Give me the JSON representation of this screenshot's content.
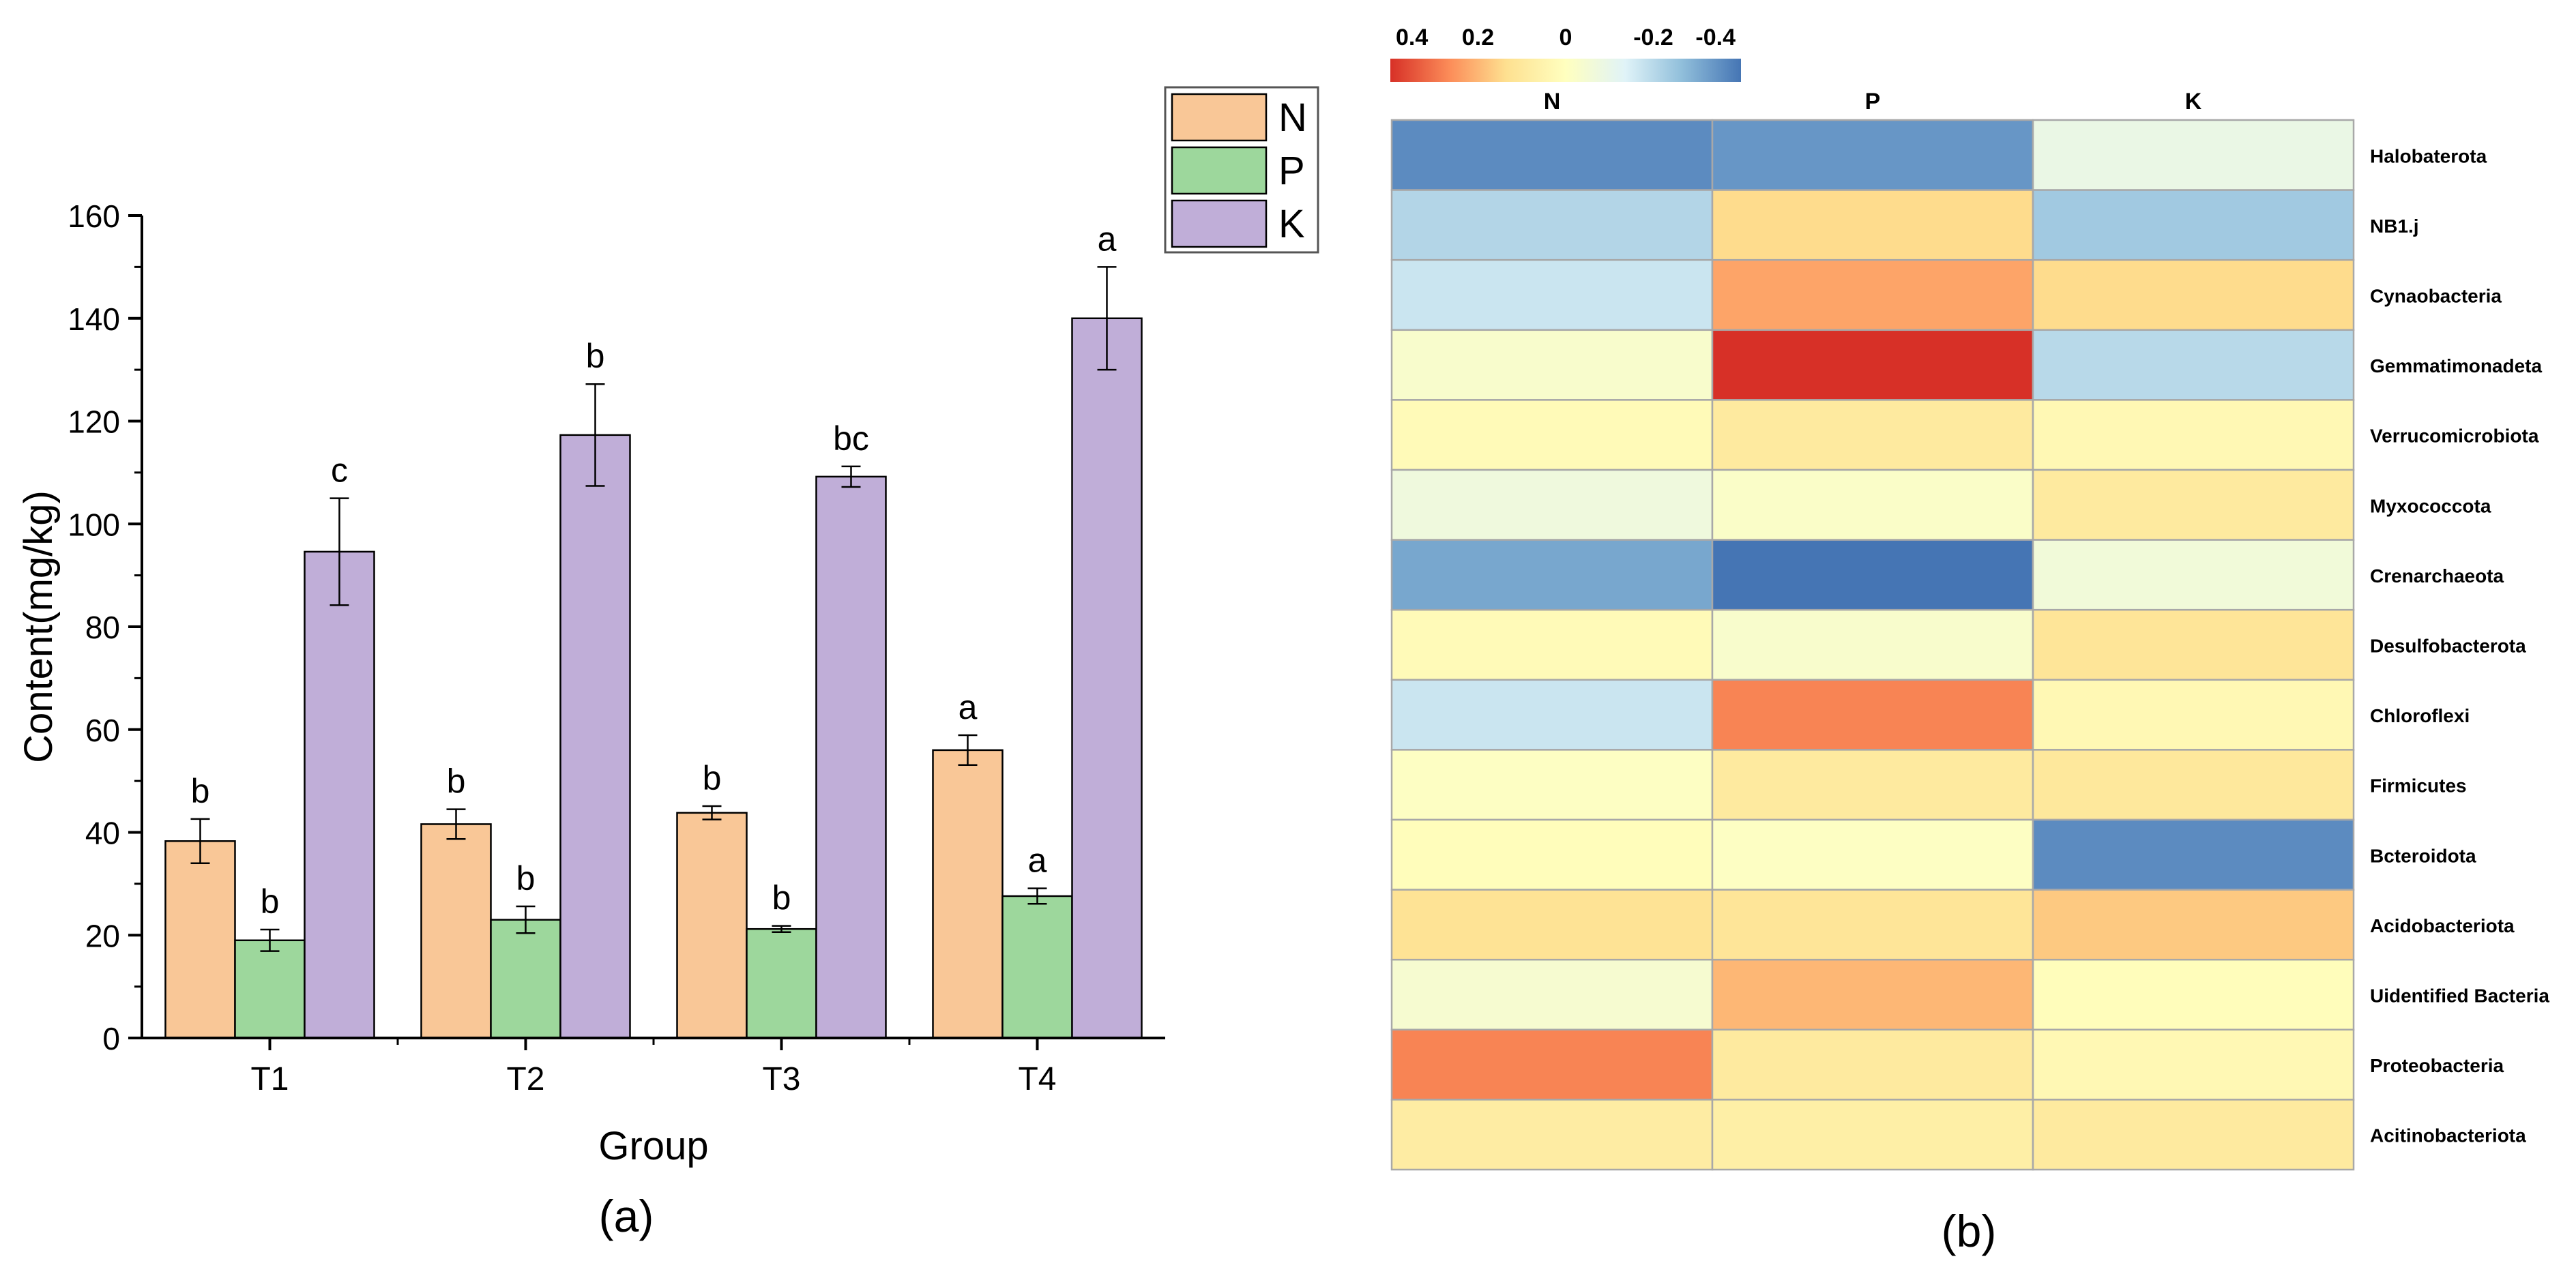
{
  "colors": {
    "N": "#f9c797",
    "P": "#9dd79c",
    "K": "#c0aed8",
    "axis": "#000000",
    "heat_border": "#a8a8a8",
    "scale": [
      "#d73027",
      "#fc8d59",
      "#fee090",
      "#ffffbf",
      "#e0f3f8",
      "#91bfdb",
      "#4575b4"
    ]
  },
  "chart_data": [
    {
      "type": "bar",
      "panel_label": "(a)",
      "xlabel": "Group",
      "ylabel": "Content(mg/kg)",
      "ylim": [
        0,
        160
      ],
      "yticks": [
        0,
        20,
        40,
        60,
        80,
        100,
        120,
        140,
        160
      ],
      "ytick_labels": [
        "0",
        "20",
        "40",
        "60",
        "80",
        "100",
        "120",
        "140",
        "160"
      ],
      "categories": [
        "T1",
        "T2",
        "T3",
        "T4"
      ],
      "legend_position": "top-right",
      "series": [
        {
          "name": "N",
          "values": [
            38.3,
            41.6,
            43.8,
            56.0
          ],
          "errors": [
            4.3,
            2.9,
            1.3,
            2.9
          ],
          "letters": [
            "b",
            "b",
            "b",
            "a"
          ]
        },
        {
          "name": "P",
          "values": [
            19.0,
            23.0,
            21.2,
            27.6
          ],
          "errors": [
            2.1,
            2.6,
            0.6,
            1.5
          ],
          "letters": [
            "b",
            "b",
            "b",
            "a"
          ]
        },
        {
          "name": "K",
          "values": [
            94.6,
            117.3,
            109.2,
            140.0
          ],
          "errors": [
            10.4,
            9.9,
            2.0,
            10.0
          ],
          "letters": [
            "c",
            "b",
            "bc",
            "a"
          ]
        }
      ]
    },
    {
      "type": "heatmap",
      "panel_label": "(b)",
      "columns": [
        "N",
        "P",
        "K"
      ],
      "rows": [
        "Halobaterota",
        "NB1.j",
        "Cynaobacteria",
        "Gemmatimonadeta",
        "Verrucomicrobiota",
        "Myxococcota",
        "Crenarchaeota",
        "Desulfobacterota",
        "Chloroflexi",
        "Firmicutes",
        "Bcteroidota",
        "Acidobacteriota",
        "Uidentified Bacteria",
        "Proteobacteria",
        "Acitinobacteriota"
      ],
      "values": [
        [
          -0.36,
          -0.34,
          -0.09
        ],
        [
          -0.21,
          0.14,
          -0.24
        ],
        [
          -0.17,
          0.23,
          0.14
        ],
        [
          -0.03,
          0.4,
          -0.2
        ],
        [
          0.02,
          0.09,
          0.03
        ],
        [
          -0.07,
          -0.02,
          0.09
        ],
        [
          -0.31,
          -0.4,
          -0.06
        ],
        [
          0.02,
          -0.03,
          0.11
        ],
        [
          -0.17,
          0.28,
          0.03
        ],
        [
          -0.01,
          0.09,
          0.1
        ],
        [
          0.01,
          -0.01,
          -0.36
        ],
        [
          0.12,
          0.11,
          0.17
        ],
        [
          -0.04,
          0.2,
          0.01
        ],
        [
          0.28,
          0.09,
          0.03
        ],
        [
          0.08,
          0.07,
          0.09
        ]
      ],
      "colorbar": {
        "range": [
          0.4,
          -0.4
        ],
        "tick_labels": [
          "0.4",
          "0.2",
          "0",
          "-0.2",
          "-0.4"
        ],
        "tick_values": [
          0.4,
          0.2,
          0,
          -0.2,
          -0.4
        ]
      }
    }
  ]
}
